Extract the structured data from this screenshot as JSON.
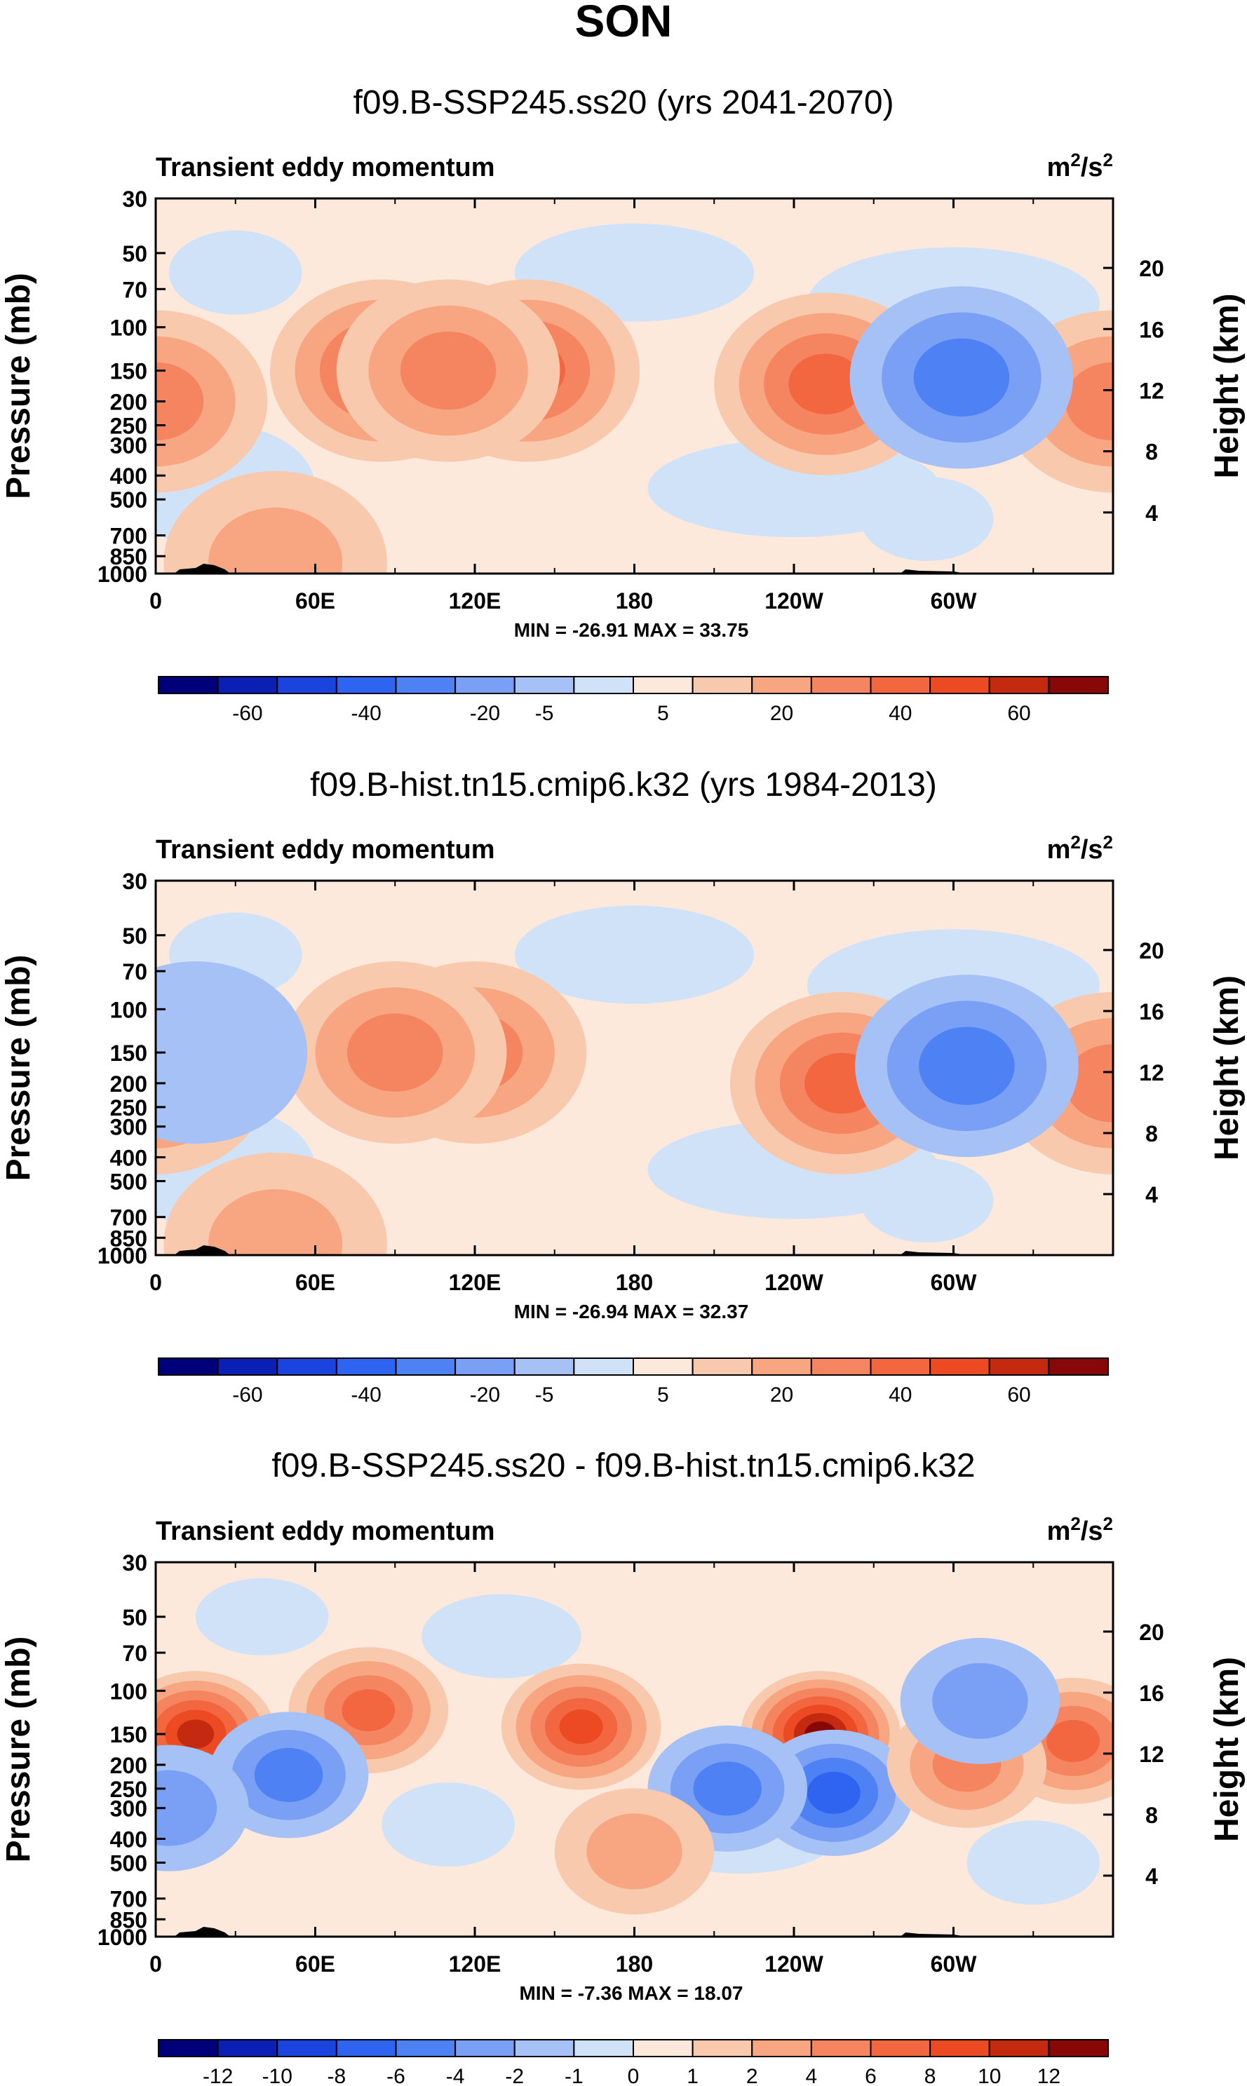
{
  "page_title": "SON",
  "colors": {
    "blues": [
      "#00007a",
      "#0a1fb4",
      "#1a44dd",
      "#2e64f0",
      "#4e82f4",
      "#7aa0f5",
      "#a5c1f5",
      "#d0e2f8"
    ],
    "reds": [
      "#fde8dc",
      "#f9c9ad",
      "#f7a681",
      "#f48560",
      "#f2673f",
      "#ec4a22",
      "#c42a10",
      "#880808"
    ],
    "land": "#000000"
  },
  "chart_data": [
    {
      "type": "contour",
      "title": "f09.B-SSP245.ss20 (yrs 2041-2070)",
      "left_label": "Transient eddy momentum",
      "units_base": "m",
      "units_sup1": "2",
      "units_mid": "/s",
      "units_sup2": "2",
      "ylabel": "Pressure (mb)",
      "ylabel_right": "Height (km)",
      "p_range": [
        1000,
        30
      ],
      "p_ticks": [
        "30",
        "50",
        "70",
        "100",
        "150",
        "200",
        "250",
        "300",
        "400",
        "500",
        "700",
        "850",
        "1000"
      ],
      "h_ticks": [
        "20",
        "16",
        "12",
        "8",
        "4"
      ],
      "x_ticks": [
        "0",
        "60E",
        "120E",
        "180",
        "120W",
        "60W"
      ],
      "minmax": "MIN = -26.91   MAX =  33.75",
      "colorbar_labels": [
        "-60",
        "-40",
        "-20",
        "-5",
        "5",
        "20",
        "40",
        "60"
      ],
      "features": [
        {
          "lon": 0,
          "p": 200,
          "value": 25
        },
        {
          "lon": 360,
          "p": 200,
          "value": 25
        },
        {
          "lon": 85,
          "p": 150,
          "value": 30
        },
        {
          "lon": 140,
          "p": 150,
          "value": 30
        },
        {
          "lon": 110,
          "p": 150,
          "value": 20
        },
        {
          "lon": 252,
          "p": 170,
          "value": 33.75
        },
        {
          "lon": 303,
          "p": 160,
          "value": -26.91
        },
        {
          "lon": 160,
          "p": 500,
          "value": -3
        },
        {
          "lon": 45,
          "p": 900,
          "value": 15
        },
        {
          "lon": 180,
          "p": 400,
          "value": 3
        }
      ]
    },
    {
      "type": "contour",
      "title": "f09.B-hist.tn15.cmip6.k32 (yrs 1984-2013)",
      "left_label": "Transient eddy momentum",
      "units_base": "m",
      "units_sup1": "2",
      "units_mid": "/s",
      "units_sup2": "2",
      "ylabel": "Pressure (mb)",
      "ylabel_right": "Height (km)",
      "p_range": [
        1000,
        30
      ],
      "p_ticks": [
        "30",
        "50",
        "70",
        "100",
        "150",
        "200",
        "250",
        "300",
        "400",
        "500",
        "700",
        "850",
        "1000"
      ],
      "h_ticks": [
        "20",
        "16",
        "12",
        "8",
        "4"
      ],
      "x_ticks": [
        "0",
        "60E",
        "120E",
        "180",
        "120W",
        "60W"
      ],
      "minmax": "MIN = -26.94   MAX =  32.37",
      "colorbar_labels": [
        "-60",
        "-40",
        "-20",
        "-5",
        "5",
        "20",
        "40",
        "60"
      ],
      "features": [
        {
          "lon": 0,
          "p": 200,
          "value": 24
        },
        {
          "lon": 360,
          "p": 200,
          "value": 24
        },
        {
          "lon": 120,
          "p": 150,
          "value": 28
        },
        {
          "lon": 90,
          "p": 150,
          "value": 22
        },
        {
          "lon": 258,
          "p": 200,
          "value": 32.37
        },
        {
          "lon": 305,
          "p": 170,
          "value": -26.94
        },
        {
          "lon": 15,
          "p": 150,
          "value": -8
        },
        {
          "lon": 45,
          "p": 900,
          "value": 15
        },
        {
          "lon": 175,
          "p": 400,
          "value": 3
        }
      ]
    },
    {
      "type": "contour",
      "title": "f09.B-SSP245.ss20 - f09.B-hist.tn15.cmip6.k32",
      "left_label": "Transient eddy momentum",
      "units_base": "m",
      "units_sup1": "2",
      "units_mid": "/s",
      "units_sup2": "2",
      "ylabel": "Pressure (mb)",
      "ylabel_right": "Height (km)",
      "p_range": [
        1000,
        30
      ],
      "p_ticks": [
        "30",
        "50",
        "70",
        "100",
        "150",
        "200",
        "250",
        "300",
        "400",
        "500",
        "700",
        "850",
        "1000"
      ],
      "h_ticks": [
        "20",
        "16",
        "12",
        "8",
        "4"
      ],
      "x_ticks": [
        "0",
        "60E",
        "120E",
        "180",
        "120W",
        "60W"
      ],
      "minmax": "MIN = -7.36   MAX = 18.07",
      "colorbar_labels": [
        "-12",
        "-10",
        "-8",
        "-6",
        "-4",
        "-2",
        "-1",
        "0",
        "1",
        "2",
        "4",
        "6",
        "8",
        "10",
        "12"
      ],
      "features": [
        {
          "lon": 15,
          "p": 150,
          "value": 10
        },
        {
          "lon": 80,
          "p": 120,
          "value": 7
        },
        {
          "lon": 160,
          "p": 140,
          "value": 9
        },
        {
          "lon": 250,
          "p": 150,
          "value": 18.07
        },
        {
          "lon": 255,
          "p": 260,
          "value": -7.36
        },
        {
          "lon": 215,
          "p": 250,
          "value": -4
        },
        {
          "lon": 50,
          "p": 220,
          "value": -5
        },
        {
          "lon": 345,
          "p": 160,
          "value": 7
        },
        {
          "lon": 305,
          "p": 200,
          "value": 5
        },
        {
          "lon": 180,
          "p": 450,
          "value": 3
        },
        {
          "lon": 5,
          "p": 300,
          "value": -3
        },
        {
          "lon": 310,
          "p": 110,
          "value": -3
        }
      ]
    }
  ]
}
